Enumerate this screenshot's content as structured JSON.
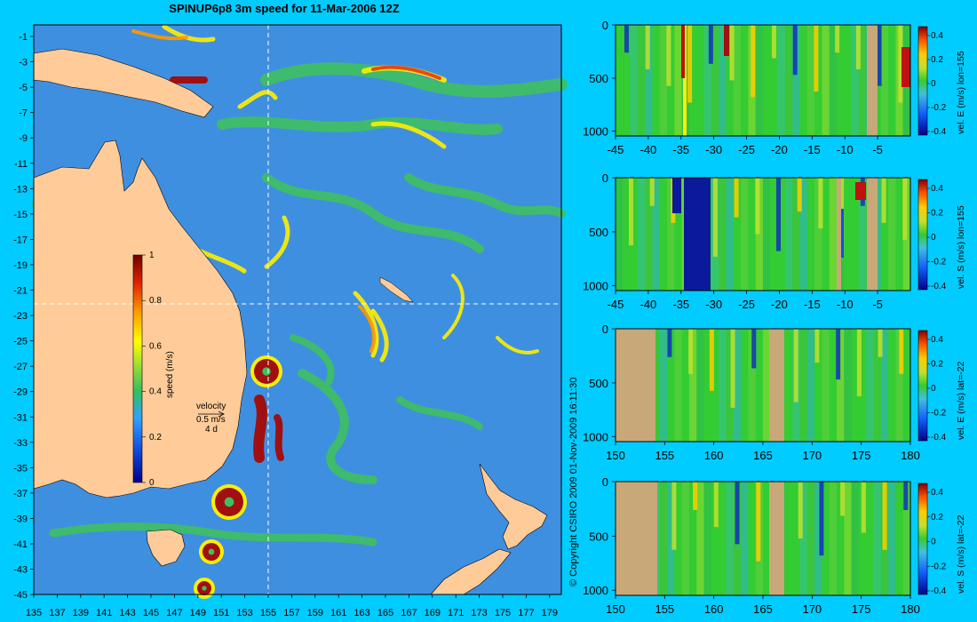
{
  "title": "SPINUP6p8 3m speed for 11-Mar-2006 12Z",
  "copyright": "© Copyright CSIRO 2009   01-Nov-2009 16:11:30",
  "map": {
    "lat_ticks": [
      "-1",
      "-3",
      "-5",
      "-7",
      "-9",
      "-11",
      "-13",
      "-15",
      "-17",
      "-19",
      "-21",
      "-23",
      "-25",
      "-27",
      "-29",
      "-31",
      "-33",
      "-35",
      "-37",
      "-39",
      "-41",
      "-43",
      "-45"
    ],
    "lon_ticks": [
      "135",
      "137",
      "139",
      "141",
      "143",
      "145",
      "147",
      "149",
      "151",
      "153",
      "155",
      "157",
      "159",
      "161",
      "163",
      "165",
      "167",
      "169",
      "171",
      "173",
      "175",
      "177",
      "179"
    ],
    "lat_range": [
      -45,
      0
    ],
    "lon_range": [
      135,
      180
    ],
    "section_lon": 155,
    "section_lat": -22,
    "colorbar": {
      "label": "speed (m/s)",
      "ticks": [
        "1",
        "0.8",
        "0.6",
        "0.4",
        "0.2",
        "0"
      ]
    },
    "velocity_key": {
      "title": "velocity",
      "value": "0.5 m/s",
      "duration": "4 d"
    },
    "colors": {
      "land": "#ffcc99",
      "ocean": "#3f8fe0",
      "highspeed": "#a01010"
    }
  },
  "panels": [
    {
      "ylabel": "vel. E (m/s) lon=155",
      "x_ticks": [
        "-45",
        "-40",
        "-35",
        "-30",
        "-25",
        "-20",
        "-15",
        "-10",
        "-5"
      ],
      "y_ticks": [
        "0",
        "500",
        "1000"
      ],
      "cbar_ticks": [
        "0.4",
        "0.2",
        "0",
        "-0.2",
        "-0.4"
      ]
    },
    {
      "ylabel": "vel. S (m/s) lon=155",
      "x_ticks": [
        "-45",
        "-40",
        "-35",
        "-30",
        "-25",
        "-20",
        "-15",
        "-10",
        "-5"
      ],
      "y_ticks": [
        "0",
        "500",
        "1000"
      ],
      "cbar_ticks": [
        "0.4",
        "0.2",
        "0",
        "-0.2",
        "-0.4"
      ]
    },
    {
      "ylabel": "vel. E (m/s) lat=-22",
      "x_ticks": [
        "150",
        "155",
        "160",
        "165",
        "170",
        "175",
        "180"
      ],
      "y_ticks": [
        "0",
        "500",
        "1000"
      ],
      "cbar_ticks": [
        "0.4",
        "0.2",
        "0",
        "-0.2",
        "-0.4"
      ]
    },
    {
      "ylabel": "vel. S (m/s) lat=-22",
      "x_ticks": [
        "150",
        "155",
        "160",
        "165",
        "170",
        "175",
        "180"
      ],
      "y_ticks": [
        "0",
        "500",
        "1000"
      ],
      "cbar_ticks": [
        "0.4",
        "0.2",
        "0",
        "-0.2",
        "-0.4"
      ]
    }
  ]
}
